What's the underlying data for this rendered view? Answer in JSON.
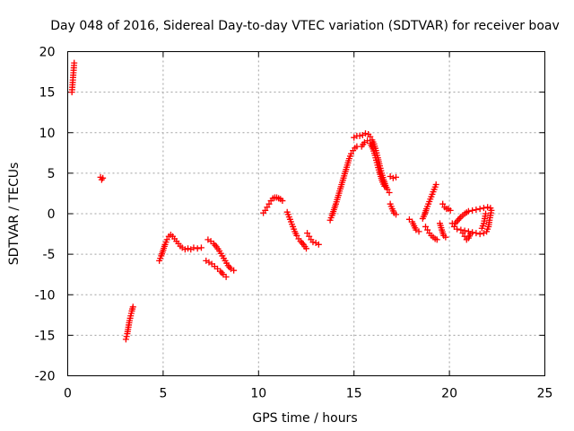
{
  "chart_data": {
    "type": "scatter",
    "title": "Day 048 of 2016, Sidereal Day-to-day VTEC variation (SDTVAR) for receiver boav",
    "xlabel": "GPS time / hours",
    "ylabel": "SDTVAR / TECUs",
    "xlim": [
      0,
      25
    ],
    "ylim": [
      -20,
      20
    ],
    "xticks": [
      0,
      5,
      10,
      15,
      20,
      25
    ],
    "yticks": [
      -20,
      -15,
      -10,
      -5,
      0,
      5,
      10,
      15,
      20
    ],
    "grid": true,
    "marker": "+",
    "color": "#ff0000",
    "series": [
      {
        "name": "SDTVAR",
        "segments": [
          [
            [
              0.22,
              15.0
            ],
            [
              0.24,
              15.6
            ],
            [
              0.26,
              16.2
            ],
            [
              0.28,
              16.8
            ],
            [
              0.3,
              17.4
            ],
            [
              0.32,
              18.0
            ],
            [
              0.34,
              18.6
            ]
          ],
          [
            [
              1.72,
              4.5
            ],
            [
              1.78,
              4.2
            ],
            [
              1.84,
              4.4
            ]
          ],
          [
            [
              3.05,
              -15.5
            ],
            [
              3.12,
              -14.8
            ],
            [
              3.18,
              -14.0
            ],
            [
              3.24,
              -13.2
            ],
            [
              3.3,
              -12.6
            ],
            [
              3.36,
              -12.0
            ],
            [
              3.42,
              -11.5
            ]
          ],
          [
            [
              4.8,
              -5.8
            ],
            [
              4.9,
              -5.2
            ],
            [
              5.0,
              -4.5
            ],
            [
              5.1,
              -3.8
            ],
            [
              5.2,
              -3.2
            ],
            [
              5.3,
              -2.8
            ],
            [
              5.4,
              -2.6
            ],
            [
              5.5,
              -2.8
            ],
            [
              5.6,
              -3.1
            ],
            [
              5.7,
              -3.4
            ],
            [
              5.8,
              -3.7
            ],
            [
              5.9,
              -4.0
            ],
            [
              6.0,
              -4.2
            ],
            [
              6.15,
              -4.4
            ],
            [
              6.3,
              -4.3
            ],
            [
              6.45,
              -4.4
            ],
            [
              6.6,
              -4.2
            ],
            [
              6.8,
              -4.3
            ],
            [
              7.0,
              -4.2
            ]
          ],
          [
            [
              7.25,
              -5.8
            ],
            [
              7.4,
              -6.0
            ],
            [
              7.55,
              -6.2
            ],
            [
              7.7,
              -6.5
            ],
            [
              7.85,
              -6.8
            ],
            [
              8.0,
              -7.1
            ],
            [
              8.15,
              -7.5
            ],
            [
              8.3,
              -7.8
            ]
          ],
          [
            [
              7.35,
              -3.2
            ],
            [
              7.5,
              -3.4
            ],
            [
              7.65,
              -3.7
            ],
            [
              7.8,
              -4.1
            ],
            [
              7.95,
              -4.6
            ],
            [
              8.1,
              -5.2
            ],
            [
              8.25,
              -5.8
            ],
            [
              8.4,
              -6.4
            ],
            [
              8.55,
              -6.8
            ],
            [
              8.7,
              -7.0
            ]
          ],
          [
            [
              10.25,
              0.1
            ],
            [
              10.35,
              0.4
            ],
            [
              10.45,
              0.8
            ],
            [
              10.55,
              1.2
            ],
            [
              10.65,
              1.6
            ],
            [
              10.75,
              1.9
            ],
            [
              10.85,
              2.0
            ],
            [
              10.95,
              2.0
            ],
            [
              11.05,
              1.9
            ],
            [
              11.15,
              1.8
            ],
            [
              11.25,
              1.6
            ]
          ],
          [
            [
              11.5,
              0.2
            ],
            [
              11.6,
              -0.4
            ],
            [
              11.7,
              -1.0
            ],
            [
              11.8,
              -1.6
            ],
            [
              11.9,
              -2.2
            ],
            [
              12.0,
              -2.7
            ],
            [
              12.1,
              -3.1
            ],
            [
              12.2,
              -3.4
            ],
            [
              12.35,
              -3.8
            ],
            [
              12.5,
              -4.3
            ]
          ],
          [
            [
              12.55,
              -2.4
            ],
            [
              12.65,
              -2.8
            ],
            [
              12.75,
              -3.2
            ],
            [
              12.85,
              -3.5
            ],
            [
              13.0,
              -3.6
            ],
            [
              13.15,
              -3.8
            ]
          ],
          [
            [
              13.75,
              -0.8
            ],
            [
              13.85,
              -0.2
            ],
            [
              13.95,
              0.5
            ],
            [
              14.05,
              1.2
            ],
            [
              14.15,
              2.0
            ],
            [
              14.25,
              2.8
            ],
            [
              14.35,
              3.6
            ],
            [
              14.45,
              4.4
            ],
            [
              14.55,
              5.2
            ],
            [
              14.65,
              6.0
            ],
            [
              14.75,
              6.8
            ],
            [
              14.85,
              7.4
            ],
            [
              14.95,
              7.8
            ],
            [
              15.05,
              8.1
            ],
            [
              15.15,
              8.3
            ]
          ],
          [
            [
              15.0,
              9.4
            ],
            [
              15.15,
              9.6
            ],
            [
              15.3,
              9.6
            ],
            [
              15.45,
              9.7
            ],
            [
              15.6,
              9.9
            ],
            [
              15.75,
              9.8
            ],
            [
              15.85,
              9.5
            ],
            [
              15.95,
              9.1
            ],
            [
              16.05,
              8.6
            ],
            [
              16.15,
              7.8
            ],
            [
              16.25,
              6.9
            ],
            [
              16.35,
              5.9
            ],
            [
              16.45,
              5.0
            ],
            [
              16.55,
              4.2
            ],
            [
              16.65,
              3.5
            ],
            [
              16.75,
              3.0
            ],
            [
              16.85,
              2.6
            ]
          ],
          [
            [
              15.4,
              8.3
            ],
            [
              15.55,
              8.8
            ],
            [
              15.7,
              9.0
            ],
            [
              15.85,
              8.7
            ],
            [
              16.0,
              8.0
            ],
            [
              16.1,
              7.2
            ],
            [
              16.2,
              6.3
            ],
            [
              16.3,
              5.4
            ],
            [
              16.4,
              4.6
            ],
            [
              16.5,
              3.9
            ],
            [
              16.6,
              3.4
            ]
          ],
          [
            [
              16.9,
              4.6
            ],
            [
              17.05,
              4.4
            ],
            [
              17.2,
              4.5
            ]
          ],
          [
            [
              16.9,
              1.2
            ],
            [
              17.0,
              0.6
            ],
            [
              17.1,
              0.1
            ],
            [
              17.2,
              -0.1
            ]
          ],
          [
            [
              17.9,
              -0.7
            ],
            [
              18.05,
              -1.0
            ],
            [
              18.25,
              -2.0
            ],
            [
              18.4,
              -2.2
            ]
          ],
          [
            [
              18.6,
              -0.6
            ],
            [
              18.7,
              -0.1
            ],
            [
              18.8,
              0.6
            ],
            [
              18.9,
              1.2
            ],
            [
              19.0,
              1.8
            ],
            [
              19.1,
              2.4
            ],
            [
              19.2,
              3.0
            ],
            [
              19.3,
              3.6
            ]
          ],
          [
            [
              18.75,
              -1.6
            ],
            [
              18.85,
              -2.0
            ],
            [
              18.95,
              -2.4
            ],
            [
              19.05,
              -2.7
            ],
            [
              19.15,
              -2.9
            ],
            [
              19.25,
              -3.1
            ],
            [
              19.35,
              -3.2
            ]
          ],
          [
            [
              19.5,
              -1.2
            ],
            [
              19.6,
              -2.0
            ],
            [
              19.7,
              -2.7
            ],
            [
              19.8,
              -2.9
            ]
          ],
          [
            [
              19.65,
              1.2
            ],
            [
              19.75,
              0.8
            ],
            [
              19.85,
              0.6
            ],
            [
              19.95,
              0.6
            ],
            [
              20.05,
              0.4
            ]
          ],
          [
            [
              20.15,
              -1.2
            ],
            [
              20.25,
              -1.6
            ],
            [
              20.4,
              -1.9
            ],
            [
              20.6,
              -2.0
            ],
            [
              20.8,
              -2.1
            ],
            [
              21.0,
              -2.2
            ],
            [
              21.2,
              -2.3
            ],
            [
              21.4,
              -2.4
            ],
            [
              21.6,
              -2.5
            ],
            [
              21.8,
              -2.4
            ],
            [
              21.95,
              -2.2
            ],
            [
              22.05,
              -1.6
            ],
            [
              22.1,
              -0.8
            ],
            [
              22.15,
              -0.2
            ],
            [
              22.2,
              0.4
            ],
            [
              22.15,
              0.7
            ],
            [
              22.0,
              0.8
            ],
            [
              21.8,
              0.7
            ],
            [
              21.6,
              0.6
            ],
            [
              21.4,
              0.5
            ],
            [
              21.2,
              0.4
            ],
            [
              21.0,
              0.3
            ],
            [
              20.8,
              0.0
            ],
            [
              20.6,
              -0.4
            ],
            [
              20.45,
              -0.8
            ],
            [
              20.3,
              -1.2
            ]
          ],
          [
            [
              20.7,
              -2.4
            ],
            [
              20.8,
              -2.8
            ],
            [
              20.9,
              -3.2
            ],
            [
              21.0,
              -3.0
            ],
            [
              21.1,
              -2.5
            ]
          ],
          [
            [
              21.7,
              -1.8
            ],
            [
              21.8,
              -1.2
            ],
            [
              21.85,
              -0.6
            ],
            [
              21.9,
              0.0
            ]
          ]
        ]
      }
    ]
  }
}
